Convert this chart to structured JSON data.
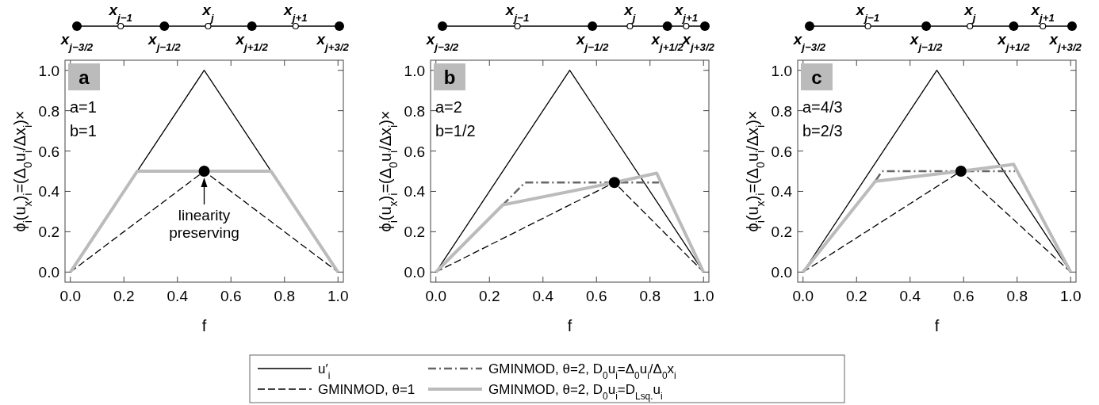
{
  "chart_data": [
    {
      "type": "line",
      "title": "a",
      "xlabel": "f",
      "ylabel": "ϕ$_{i}$(u$_{x}$)$_{i}$=(Δ$_{0}$u$_{i}$/Δx$_{i}$)×",
      "xlim": [
        -0.02,
        1.02
      ],
      "ylim": [
        -0.05,
        1.05
      ],
      "xticks": [
        {
          "value": 0,
          "label": "0.0"
        },
        {
          "value": 0.2,
          "label": "0.2"
        },
        {
          "value": 0.4,
          "label": "0.4"
        },
        {
          "value": 0.6,
          "label": "0.6"
        },
        {
          "value": 0.8,
          "label": "0.8"
        },
        {
          "value": 1,
          "label": "1.0"
        }
      ],
      "yticks": [
        {
          "value": 0,
          "label": "0.0"
        },
        {
          "value": 0.2,
          "label": "0.2"
        },
        {
          "value": 0.4,
          "label": "0.4"
        },
        {
          "value": 0.6,
          "label": "0.6"
        },
        {
          "value": 0.8,
          "label": "0.8"
        },
        {
          "value": 1,
          "label": "1.0"
        }
      ],
      "grid": false,
      "legend": false,
      "annotations": [
        "a=1",
        "b=1",
        "x$_{j−3/2}$",
        "x$_{j−1}$",
        "x$_{j−1/2}$",
        "x$_{j}$",
        "x$_{j+1/2}$",
        "x$_{j+1}$",
        "x$_{j+3/2}$",
        {
          "text": "linearity preserving",
          "x": 0.5,
          "y": 0.5
        }
      ],
      "series": [
        {
          "color": "#000000",
          "line_style": "solid",
          "x": [
            0,
            0.5,
            1
          ],
          "values": [
            0,
            1,
            0
          ]
        },
        {
          "color": "#000000",
          "line_style": "dashed",
          "x": [
            0,
            0.5,
            1
          ],
          "values": [
            0,
            0.5,
            0
          ]
        },
        {
          "color": "#bbbbbb",
          "line_style": "solid",
          "x": [
            0,
            0.25,
            0.75,
            1
          ],
          "values": [
            0,
            0.5,
            0.5,
            0
          ]
        },
        {
          "type": "scatter",
          "marker": "circle",
          "color": "#000000",
          "x": [
            0.5
          ],
          "values": [
            0.5
          ]
        }
      ]
    },
    {
      "type": "line",
      "title": "b",
      "xlabel": "f",
      "ylabel": "ϕ$_{i}$(u$_{x}$)$_{i}$=(Δ$_{0}$u$_{i}$/Δx$_{i}$)×",
      "xlim": [
        -0.02,
        1.02
      ],
      "ylim": [
        -0.05,
        1.05
      ],
      "xticks": [
        {
          "value": 0,
          "label": "0.0"
        },
        {
          "value": 0.2,
          "label": "0.2"
        },
        {
          "value": 0.4,
          "label": "0.4"
        },
        {
          "value": 0.6,
          "label": "0.6"
        },
        {
          "value": 0.8,
          "label": "0.8"
        },
        {
          "value": 1,
          "label": "1.0"
        }
      ],
      "yticks": [
        {
          "value": 0,
          "label": "0.0"
        },
        {
          "value": 0.2,
          "label": "0.2"
        },
        {
          "value": 0.4,
          "label": "0.4"
        },
        {
          "value": 0.6,
          "label": "0.6"
        },
        {
          "value": 0.8,
          "label": "0.8"
        },
        {
          "value": 1,
          "label": "1.0"
        }
      ],
      "grid": false,
      "legend": "bottom",
      "annotations": [
        "a=2",
        "b=1/2",
        "x$_{j−3/2}$",
        "x$_{j−1}$",
        "x$_{j−1/2}$",
        "x$_{j}$",
        "x$_{j+1/2}$",
        "x$_{j+1}$",
        "x$_{j+3/2}$"
      ],
      "series": [
        {
          "name": "u′$_{i}$",
          "color": "#000000",
          "line_style": "solid",
          "x": [
            0,
            0.5,
            1
          ],
          "values": [
            0,
            1,
            0
          ]
        },
        {
          "name": "GMINMOD, θ=1",
          "color": "#000000",
          "line_style": "dashed",
          "x": [
            0,
            0.667,
            1
          ],
          "values": [
            0,
            0.444,
            0
          ]
        },
        {
          "name": "GMINMOD, θ=2, D$_{0}$u$_{i}$=Δ$_{0}$u$_{i}$/Δ$_{0}$x$_{i}$",
          "color": "#666666",
          "line_style": "dashed",
          "x": [
            0.25,
            0.333,
            0.833
          ],
          "values": [
            0.333,
            0.444,
            0.444
          ]
        },
        {
          "name": "GMINMOD, θ=2, D$_{0}$u$_{i}$=D$_{Lsq.}$u$_{i}$",
          "color": "#bbbbbb",
          "line_style": "solid",
          "x": [
            0,
            0.25,
            0.667,
            0.825,
            1
          ],
          "values": [
            0,
            0.333,
            0.444,
            0.49,
            0
          ]
        },
        {
          "type": "scatter",
          "marker": "circle",
          "color": "#000000",
          "x": [
            0.667
          ],
          "values": [
            0.444
          ]
        }
      ]
    },
    {
      "type": "line",
      "title": "c",
      "xlabel": "f",
      "ylabel": "ϕ$_{i}$(u$_{x}$)$_{i}$=(Δ$_{0}$u$_{i}$/Δx$_{i}$)×",
      "xlim": [
        -0.02,
        1.02
      ],
      "ylim": [
        -0.05,
        1.05
      ],
      "xticks": [
        {
          "value": 0,
          "label": "0.0"
        },
        {
          "value": 0.2,
          "label": "0.2"
        },
        {
          "value": 0.4,
          "label": "0.4"
        },
        {
          "value": 0.6,
          "label": "0.6"
        },
        {
          "value": 0.8,
          "label": "0.8"
        },
        {
          "value": 1,
          "label": "1.0"
        }
      ],
      "yticks": [
        {
          "value": 0,
          "label": "0.0"
        },
        {
          "value": 0.2,
          "label": "0.2"
        },
        {
          "value": 0.4,
          "label": "0.4"
        },
        {
          "value": 0.6,
          "label": "0.6"
        },
        {
          "value": 0.8,
          "label": "0.8"
        },
        {
          "value": 1,
          "label": "1.0"
        }
      ],
      "grid": false,
      "legend": false,
      "annotations": [
        "a=4/3",
        "b=2/3",
        "x$_{j−3/2}$",
        "x$_{j−1}$",
        "x$_{j−1/2}$",
        "x$_{j}$",
        "x$_{j+1/2}$",
        "x$_{j+1}$",
        "x$_{j+3/2}$"
      ],
      "series": [
        {
          "color": "#000000",
          "line_style": "solid",
          "x": [
            0,
            0.5,
            1
          ],
          "values": [
            0,
            1,
            0
          ]
        },
        {
          "color": "#000000",
          "line_style": "dashed",
          "x": [
            0,
            0.59,
            1
          ],
          "values": [
            0,
            0.5,
            0
          ]
        },
        {
          "color": "#666666",
          "line_style": "dashed",
          "x": [
            0.272,
            0.295,
            0.792
          ],
          "values": [
            0.455,
            0.5,
            0.5
          ]
        },
        {
          "color": "#bbbbbb",
          "line_style": "solid",
          "x": [
            0,
            0.27,
            0.59,
            0.787,
            1
          ],
          "values": [
            0,
            0.45,
            0.5,
            0.534,
            0
          ]
        },
        {
          "type": "scatter",
          "marker": "circle",
          "color": "#000000",
          "x": [
            0.59
          ],
          "values": [
            0.5
          ]
        }
      ]
    }
  ]
}
